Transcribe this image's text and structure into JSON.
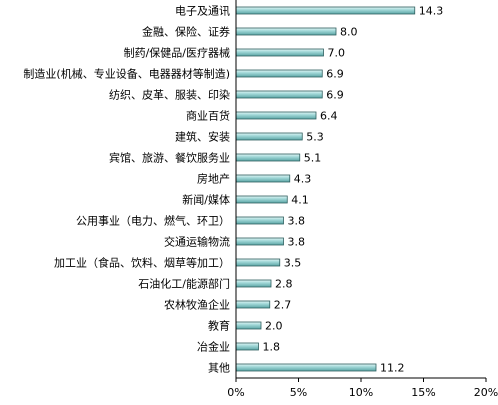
{
  "chart_data": {
    "type": "bar",
    "orientation": "horizontal",
    "categories": [
      "电子及通讯",
      "金融、保险、证券",
      "制药/保健品/医疗器械",
      "制造业(机械、专业设备、电器器材等制造)",
      "纺织、皮革、服装、印染",
      "商业百货",
      "建筑、安装",
      "宾馆、旅游、餐饮服务业",
      "房地产",
      "新闻/媒体",
      "公用事业（电力、燃气、环卫）",
      "交通运输物流",
      "加工业（食品、饮料、烟草等加工）",
      "石油化工/能源部门",
      "农林牧渔企业",
      "教育",
      "冶金业",
      "其他"
    ],
    "values": [
      14.3,
      8.0,
      7.0,
      6.9,
      6.9,
      6.4,
      5.3,
      5.1,
      4.3,
      4.1,
      3.8,
      3.8,
      3.5,
      2.8,
      2.7,
      2.0,
      1.8,
      11.2
    ],
    "value_labels": [
      "14.3",
      "8.0",
      "7.0",
      "6.9",
      "6.9",
      "6.4",
      "5.3",
      "5.1",
      "4.3",
      "4.1",
      "3.8",
      "3.8",
      "3.5",
      "2.8",
      "2.7",
      "2.0",
      "1.8",
      "11.2"
    ],
    "xlim": [
      0,
      20
    ],
    "x_ticks": [
      "0%",
      "5%",
      "10%",
      "15%",
      "20%"
    ],
    "title": "",
    "xlabel": "",
    "ylabel": "",
    "grid": false,
    "colors": {
      "bar_fill": "#7fc9c9",
      "bar_highlight": "#e6f5f5",
      "bar_edge": "#2f5f5f",
      "axis": "#000000"
    }
  }
}
